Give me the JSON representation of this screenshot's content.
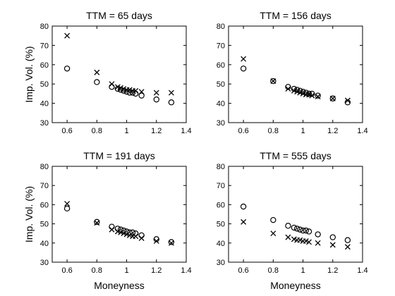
{
  "chart_data": [
    {
      "type": "scatter",
      "title": "TTM = 65 days",
      "xlabel": "",
      "ylabel": "Imp. Vol. (%)",
      "xlim": [
        0.5,
        1.4
      ],
      "ylim": [
        30,
        80
      ],
      "xticks": [
        "0.6",
        "0.8",
        "1",
        "1.2",
        "1.4"
      ],
      "yticks": [
        "30",
        "40",
        "50",
        "60",
        "70",
        "80"
      ],
      "grid": false,
      "series": [
        {
          "marker": "circle",
          "x": [
            0.6,
            0.8,
            0.9,
            0.94,
            0.96,
            0.98,
            1.0,
            1.02,
            1.04,
            1.06,
            1.1,
            1.2,
            1.3
          ],
          "y": [
            58.0,
            51.0,
            48.5,
            47.5,
            47.0,
            46.5,
            46.0,
            45.5,
            45.5,
            45.0,
            44.0,
            42.0,
            40.5
          ]
        },
        {
          "marker": "x",
          "x": [
            0.6,
            0.8,
            0.9,
            0.94,
            0.96,
            0.98,
            1.0,
            1.02,
            1.04,
            1.06,
            1.1,
            1.2,
            1.3
          ],
          "y": [
            75.0,
            56.0,
            50.0,
            48.5,
            48.0,
            47.5,
            47.0,
            47.0,
            46.5,
            46.5,
            46.0,
            45.5,
            45.5
          ]
        }
      ]
    },
    {
      "type": "scatter",
      "title": "TTM = 156 days",
      "xlabel": "",
      "ylabel": "",
      "xlim": [
        0.5,
        1.4
      ],
      "ylim": [
        30,
        80
      ],
      "xticks": [
        "0.6",
        "0.8",
        "1",
        "1.2",
        "1.4"
      ],
      "yticks": [
        "30",
        "40",
        "50",
        "60",
        "70",
        "80"
      ],
      "grid": false,
      "series": [
        {
          "marker": "circle",
          "x": [
            0.6,
            0.8,
            0.9,
            0.94,
            0.96,
            0.98,
            1.0,
            1.02,
            1.04,
            1.06,
            1.1,
            1.2,
            1.3
          ],
          "y": [
            58.0,
            51.5,
            48.5,
            47.5,
            47.0,
            46.5,
            46.0,
            45.5,
            45.0,
            45.0,
            44.0,
            42.5,
            40.5
          ]
        },
        {
          "marker": "x",
          "x": [
            0.6,
            0.8,
            0.9,
            0.94,
            0.96,
            0.98,
            1.0,
            1.02,
            1.04,
            1.06,
            1.1,
            1.2,
            1.3
          ],
          "y": [
            63.0,
            51.5,
            47.5,
            46.5,
            46.0,
            45.5,
            45.0,
            44.5,
            44.5,
            44.0,
            43.5,
            42.5,
            41.5
          ]
        }
      ]
    },
    {
      "type": "scatter",
      "title": "TTM = 191 days",
      "xlabel": "Moneyness",
      "ylabel": "Imp. Vol. (%)",
      "xlim": [
        0.5,
        1.4
      ],
      "ylim": [
        30,
        80
      ],
      "xticks": [
        "0.6",
        "0.8",
        "1",
        "1.2",
        "1.4"
      ],
      "yticks": [
        "30",
        "40",
        "50",
        "60",
        "70",
        "80"
      ],
      "grid": false,
      "series": [
        {
          "marker": "circle",
          "x": [
            0.6,
            0.8,
            0.9,
            0.94,
            0.96,
            0.98,
            1.0,
            1.02,
            1.04,
            1.06,
            1.1,
            1.2,
            1.3
          ],
          "y": [
            58.0,
            51.0,
            48.5,
            47.5,
            47.0,
            46.5,
            46.0,
            45.5,
            45.5,
            45.0,
            44.0,
            42.0,
            40.5
          ]
        },
        {
          "marker": "x",
          "x": [
            0.6,
            0.8,
            0.9,
            0.94,
            0.96,
            0.98,
            1.0,
            1.02,
            1.04,
            1.06,
            1.1,
            1.2,
            1.3
          ],
          "y": [
            60.5,
            50.5,
            47.0,
            46.0,
            45.5,
            45.0,
            44.5,
            44.0,
            43.5,
            43.5,
            42.5,
            41.0,
            40.0
          ]
        }
      ]
    },
    {
      "type": "scatter",
      "title": "TTM = 555 days",
      "xlabel": "Moneyness",
      "ylabel": "",
      "xlim": [
        0.5,
        1.4
      ],
      "ylim": [
        30,
        80
      ],
      "xticks": [
        "0.6",
        "0.8",
        "1",
        "1.2",
        "1.4"
      ],
      "yticks": [
        "30",
        "40",
        "50",
        "60",
        "70",
        "80"
      ],
      "grid": false,
      "series": [
        {
          "marker": "circle",
          "x": [
            0.6,
            0.8,
            0.9,
            0.94,
            0.96,
            0.98,
            1.0,
            1.02,
            1.04,
            1.1,
            1.2,
            1.3
          ],
          "y": [
            59.0,
            52.0,
            49.0,
            48.0,
            47.5,
            47.0,
            46.5,
            46.5,
            46.0,
            44.5,
            43.0,
            41.5
          ]
        },
        {
          "marker": "x",
          "x": [
            0.6,
            0.8,
            0.9,
            0.94,
            0.96,
            0.98,
            1.0,
            1.02,
            1.04,
            1.1,
            1.2,
            1.3
          ],
          "y": [
            51.0,
            45.0,
            43.0,
            42.0,
            41.5,
            41.5,
            41.0,
            41.0,
            40.5,
            40.0,
            39.0,
            38.0
          ]
        }
      ]
    }
  ]
}
